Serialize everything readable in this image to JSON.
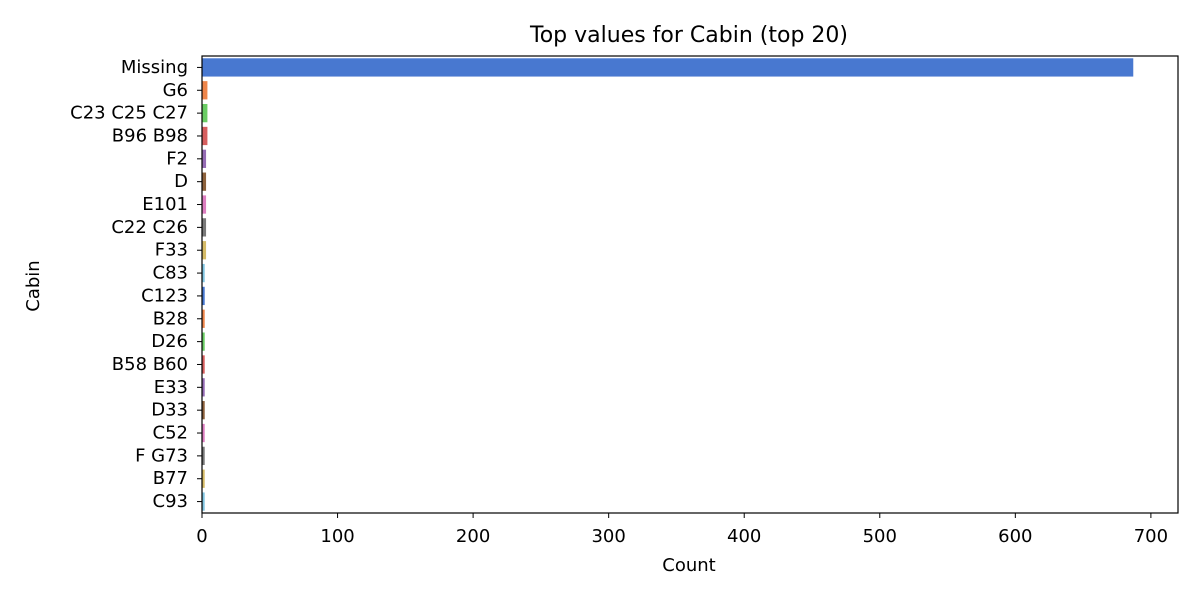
{
  "chart_data": {
    "type": "bar",
    "orientation": "horizontal",
    "title": "Top values for Cabin (top 20)",
    "xlabel": "Count",
    "ylabel": "Cabin",
    "xlim": [
      0,
      720
    ],
    "xticks": [
      0,
      100,
      200,
      300,
      400,
      500,
      600,
      700
    ],
    "categories": [
      "Missing",
      "G6",
      "C23 C25 C27",
      "B96 B98",
      "F2",
      "D",
      "E101",
      "C22 C26",
      "F33",
      "C83",
      "C123",
      "B28",
      "D26",
      "B58 B60",
      "E33",
      "D33",
      "C52",
      "F G73",
      "B77",
      "C93"
    ],
    "values": [
      687,
      4,
      4,
      4,
      3,
      3,
      3,
      3,
      3,
      2,
      2,
      2,
      2,
      2,
      2,
      2,
      2,
      2,
      2,
      2
    ],
    "colors": [
      "#4878d0",
      "#ee854a",
      "#6acc64",
      "#d65f5f",
      "#956cb4",
      "#8c613c",
      "#dc7ec0",
      "#797979",
      "#d5bb67",
      "#82c6e2",
      "#4878d0",
      "#ee854a",
      "#6acc64",
      "#d65f5f",
      "#956cb4",
      "#8c613c",
      "#dc7ec0",
      "#797979",
      "#d5bb67",
      "#82c6e2"
    ],
    "grid": false,
    "legend": false
  }
}
